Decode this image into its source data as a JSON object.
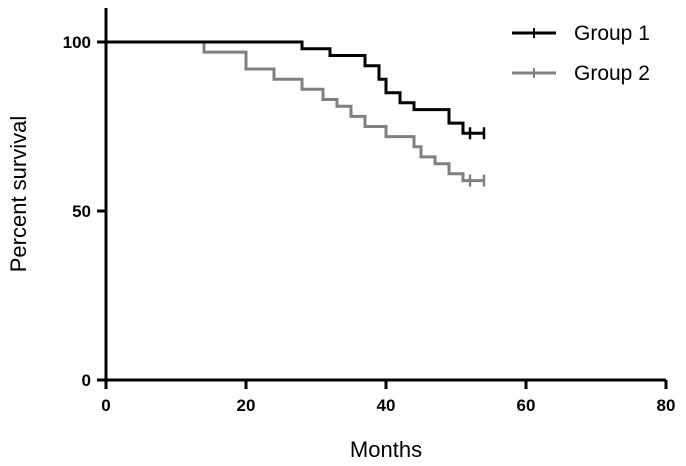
{
  "chart_data": {
    "type": "line",
    "subtype": "kaplan-meier step",
    "xlabel": "Months",
    "ylabel": "Percent survival",
    "xlim": [
      0,
      80
    ],
    "ylim": [
      0,
      100
    ],
    "x_ticks": [
      0,
      20,
      40,
      60,
      80
    ],
    "y_ticks": [
      0,
      50,
      100
    ],
    "x_tick_labels": [
      "0",
      "20",
      "40",
      "60",
      "80"
    ],
    "y_tick_labels": [
      "0",
      "50",
      "100"
    ],
    "grid": false,
    "legend_position": "top-right",
    "series": [
      {
        "name": "Group 1",
        "color": "#000000",
        "points": [
          [
            0,
            100
          ],
          [
            28,
            100
          ],
          [
            28,
            98
          ],
          [
            32,
            98
          ],
          [
            32,
            96
          ],
          [
            37,
            96
          ],
          [
            37,
            93
          ],
          [
            39,
            93
          ],
          [
            39,
            89
          ],
          [
            40,
            89
          ],
          [
            40,
            85
          ],
          [
            42,
            85
          ],
          [
            42,
            82
          ],
          [
            44,
            82
          ],
          [
            44,
            80
          ],
          [
            49,
            80
          ],
          [
            49,
            76
          ],
          [
            51,
            76
          ],
          [
            51,
            73
          ],
          [
            54,
            73
          ]
        ],
        "censored": [
          [
            52,
            73
          ],
          [
            54,
            73
          ]
        ]
      },
      {
        "name": "Group 2",
        "color": "#808080",
        "points": [
          [
            14,
            100
          ],
          [
            14,
            97
          ],
          [
            20,
            97
          ],
          [
            20,
            92
          ],
          [
            24,
            92
          ],
          [
            24,
            89
          ],
          [
            28,
            89
          ],
          [
            28,
            86
          ],
          [
            31,
            86
          ],
          [
            31,
            83
          ],
          [
            33,
            83
          ],
          [
            33,
            81
          ],
          [
            35,
            81
          ],
          [
            35,
            78
          ],
          [
            37,
            78
          ],
          [
            37,
            75
          ],
          [
            40,
            75
          ],
          [
            40,
            72
          ],
          [
            44,
            72
          ],
          [
            44,
            69
          ],
          [
            45,
            69
          ],
          [
            45,
            66
          ],
          [
            47,
            66
          ],
          [
            47,
            64
          ],
          [
            49,
            64
          ],
          [
            49,
            61
          ],
          [
            51,
            61
          ],
          [
            51,
            59
          ],
          [
            54,
            59
          ]
        ],
        "censored": [
          [
            52,
            59
          ],
          [
            54,
            59
          ]
        ]
      }
    ]
  }
}
